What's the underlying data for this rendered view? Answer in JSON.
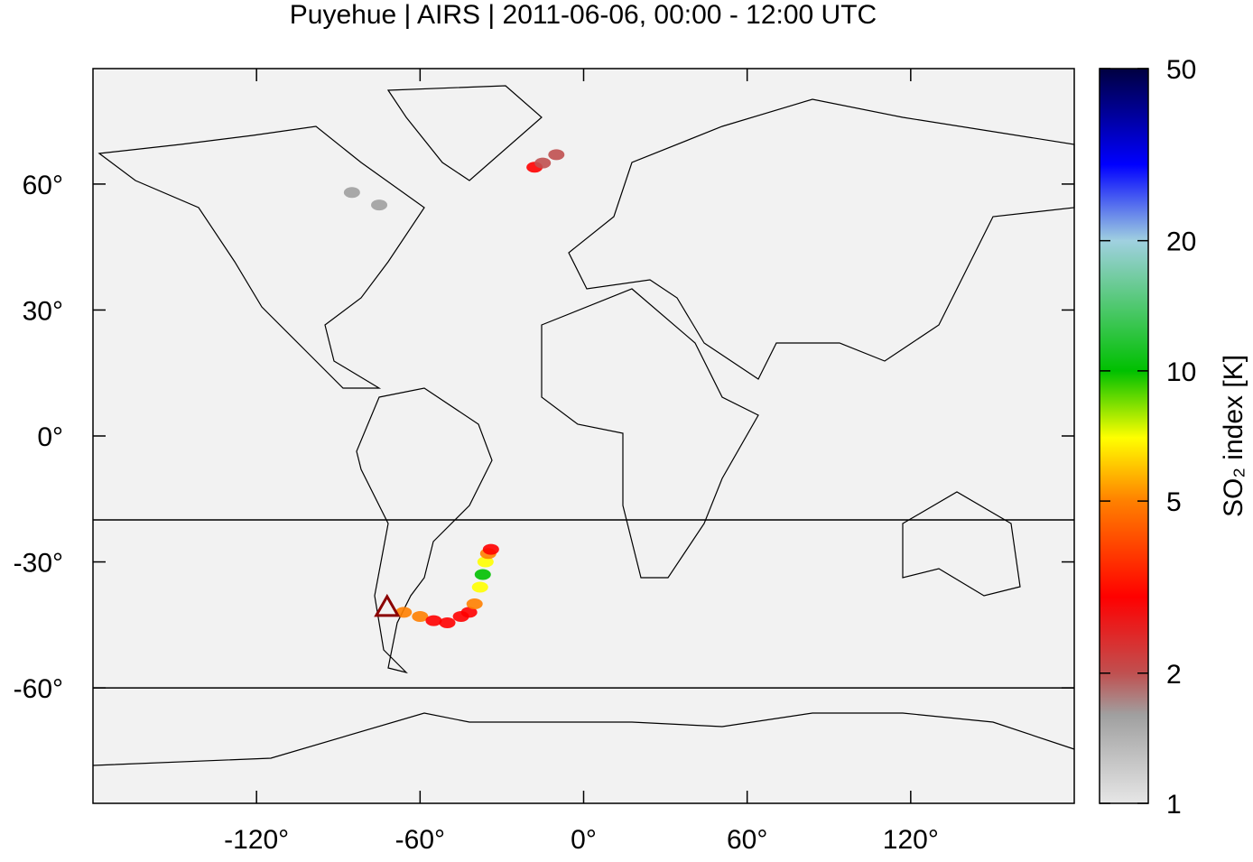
{
  "chart_data": {
    "type": "map",
    "title": "Puyehue | AIRS | 2011-06-06, 00:00 - 12:00 UTC",
    "xlim": [
      -180,
      180
    ],
    "ylim": [
      -87.5,
      87.5
    ],
    "xticks": [
      {
        "value": -120,
        "label": "-120°"
      },
      {
        "value": -60,
        "label": "-60°"
      },
      {
        "value": 0,
        "label": "0°"
      },
      {
        "value": 60,
        "label": "60°"
      },
      {
        "value": 120,
        "label": "120°"
      }
    ],
    "yticks": [
      {
        "value": 60,
        "label": "60°"
      },
      {
        "value": 30,
        "label": "30°"
      },
      {
        "value": 0,
        "label": "0°"
      },
      {
        "value": -30,
        "label": "-30°"
      },
      {
        "value": -60,
        "label": "-60°"
      }
    ],
    "hlines": [
      -20,
      -60
    ],
    "volcano": {
      "lon": -72.1,
      "lat": -40.6,
      "color": "#8b0000"
    },
    "colorbar": {
      "label": "SO₂ index [K]",
      "log": true,
      "lim": [
        1,
        50
      ],
      "ticks": [
        1,
        2,
        5,
        10,
        20,
        50
      ],
      "colormap": [
        {
          "value": 1,
          "color": "#e6e6e6"
        },
        {
          "value": 1.6,
          "color": "#a0a0a0"
        },
        {
          "value": 2,
          "color": "#c05050"
        },
        {
          "value": 3,
          "color": "#ff0000"
        },
        {
          "value": 5,
          "color": "#ff8000"
        },
        {
          "value": 7,
          "color": "#ffff00"
        },
        {
          "value": 10,
          "color": "#00c000"
        },
        {
          "value": 20,
          "color": "#a0d0e0"
        },
        {
          "value": 30,
          "color": "#0000ff"
        },
        {
          "value": 50,
          "color": "#000040"
        }
      ]
    },
    "plume": {
      "lon": [
        -66,
        -60,
        -55,
        -50,
        -45,
        -42,
        -40,
        -38,
        -37,
        -36,
        -35,
        -34,
        -18,
        -15,
        -10,
        -85,
        -75
      ],
      "lat": [
        -42,
        -43,
        -44,
        -44.5,
        -43,
        -42,
        -40,
        -36,
        -33,
        -30,
        -28,
        -27,
        64,
        65,
        67,
        58,
        55
      ],
      "values": [
        6,
        5,
        4,
        3,
        3,
        4,
        5,
        8,
        10,
        9,
        5,
        3,
        3,
        2.5,
        2,
        1.8,
        1.8
      ]
    }
  }
}
